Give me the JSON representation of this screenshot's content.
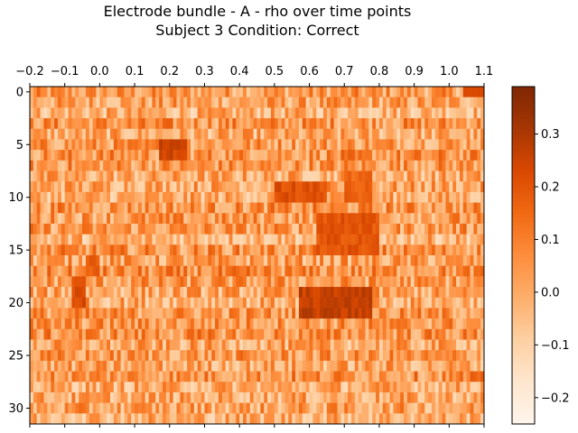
{
  "chart_data": {
    "type": "heatmap",
    "title": "Electrode bundle - A - rho over time points",
    "subtitle": "Subject 3    Condition: Correct",
    "colormap": "Oranges",
    "x_axis_position": "top",
    "x_ticks": [
      "−0.2",
      "−0.1",
      "0.0",
      "0.1",
      "0.2",
      "0.3",
      "0.4",
      "0.5",
      "0.6",
      "0.7",
      "0.8",
      "0.9",
      "1.0",
      "1.1"
    ],
    "xlim": [
      -0.2,
      1.1
    ],
    "y_ticks": [
      "0",
      "5",
      "10",
      "15",
      "20",
      "25",
      "30"
    ],
    "ylim": [
      32,
      0
    ],
    "rows": 32,
    "columns": 130,
    "colorbar_ticks": [
      "0.3",
      "0.2",
      "0.1",
      "0.0",
      "−0.1",
      "−0.2"
    ],
    "colorbar_range": [
      -0.25,
      0.39
    ],
    "colorbar_colors": [
      "#fff5eb",
      "#fee6ce",
      "#fdd0a2",
      "#fdae6b",
      "#fd8d3c",
      "#f16913",
      "#d94801",
      "#a63603",
      "#7f2704"
    ],
    "hotspots": [
      {
        "row_range": [
          9,
          11
        ],
        "x_range": [
          0.5,
          0.65
        ],
        "value": 0.25
      },
      {
        "row_range": [
          12.5,
          16
        ],
        "x_range": [
          0.62,
          0.8
        ],
        "value": 0.24
      },
      {
        "row_range": [
          19.5,
          22
        ],
        "x_range": [
          0.57,
          0.78
        ],
        "value": 0.3
      },
      {
        "row_range": [
          5,
          7
        ],
        "x_range": [
          0.17,
          0.25
        ],
        "value": 0.28
      },
      {
        "row_range": [
          18.5,
          21
        ],
        "x_range": [
          -0.08,
          -0.04
        ],
        "value": 0.26
      },
      {
        "row_range": [
          16,
          17.5
        ],
        "x_range": [
          -0.04,
          0.0
        ],
        "value": 0.22
      },
      {
        "row_range": [
          8,
          11
        ],
        "x_range": [
          0.7,
          0.78
        ],
        "value": 0.2
      },
      {
        "row_range": [
          0,
          1
        ],
        "x_range": [
          1.04,
          1.1
        ],
        "value": 0.28
      }
    ]
  }
}
